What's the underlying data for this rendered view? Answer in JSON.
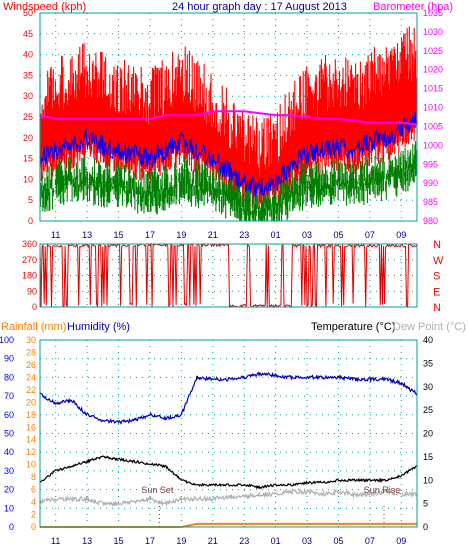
{
  "header": {
    "left_label": "Windspeed (kph)",
    "title": "24 hour graph day : 17 August 2013",
    "right_label": "Barometer (hpa)"
  },
  "colors": {
    "wind": "#ff0000",
    "gust": "#ff0000",
    "avg": "#0000ff",
    "green": "#008000",
    "baro": "#ff00ff",
    "rain": "#ff8000",
    "humidity": "#0000c0",
    "temperature": "#000000",
    "dewpoint": "#b0b0b0",
    "grid": "#00a0a0",
    "frame": "#00a0a0",
    "axis_left": "#ff0000",
    "axis_right": "#ff00ff",
    "axis_rain": "#0000ff",
    "axis_hum": "#ff8000",
    "axis_temp": "#000000"
  },
  "chart_data": [
    {
      "type": "line",
      "title": "24 hour graph day : 17 August 2013",
      "ylabel_left": "Windspeed (kph)",
      "ylabel_right": "Barometer (hpa)",
      "ylim_left": [
        0,
        50
      ],
      "ylim_right": [
        980,
        1035
      ],
      "yticks_left": [
        0,
        5,
        10,
        15,
        20,
        25,
        30,
        35,
        40,
        45,
        50
      ],
      "yticks_right": [
        980,
        985,
        990,
        995,
        1000,
        1005,
        1010,
        1015,
        1020,
        1025,
        1030,
        1035
      ],
      "x_ticks": [
        "11",
        "13",
        "15",
        "17",
        "19",
        "21",
        "23",
        "01",
        "03",
        "05",
        "07",
        "09"
      ],
      "x_hours": [
        0,
        1,
        2,
        3,
        4,
        5,
        6,
        7,
        8,
        9,
        10,
        11,
        12,
        13,
        14,
        15,
        16,
        17,
        18,
        19,
        20,
        21,
        22,
        23,
        24
      ],
      "series": [
        {
          "role": "gust",
          "values": [
            28,
            30,
            32,
            34,
            31,
            30,
            29,
            27,
            30,
            33,
            30,
            26,
            22,
            18,
            15,
            17,
            24,
            28,
            30,
            31,
            30,
            32,
            33,
            36,
            38
          ]
        },
        {
          "role": "avg",
          "values": [
            15,
            17,
            18,
            20,
            18,
            17,
            16,
            15,
            17,
            19,
            17,
            15,
            12,
            9,
            8,
            9,
            13,
            16,
            17,
            18,
            17,
            19,
            20,
            22,
            25
          ]
        },
        {
          "role": "min",
          "values": [
            7,
            9,
            10,
            10,
            9,
            9,
            8,
            7,
            8,
            10,
            9,
            8,
            6,
            4,
            3,
            4,
            7,
            9,
            9,
            10,
            9,
            10,
            11,
            12,
            14
          ]
        },
        {
          "role": "barometer",
          "values": [
            1008,
            1007,
            1007,
            1007,
            1007,
            1007,
            1007,
            1007,
            1008,
            1008,
            1008,
            1009,
            1009,
            1009,
            1008.5,
            1008,
            1008,
            1007.5,
            1007,
            1007,
            1006.5,
            1006,
            1006,
            1006,
            1005.5
          ]
        }
      ]
    },
    {
      "type": "line",
      "ylim": [
        0,
        360
      ],
      "yticks": [
        0,
        90,
        180,
        270,
        360
      ],
      "right_labels": [
        "N",
        "W",
        "S",
        "E",
        "N"
      ],
      "x_ticks": [
        "11",
        "13",
        "15",
        "17",
        "19",
        "21",
        "23",
        "01",
        "03",
        "05",
        "07",
        "09"
      ],
      "direction_segments": [
        {
          "from_hour": 0,
          "to_hour": 6,
          "value": 350
        },
        {
          "from_hour": 6,
          "to_hour": 12,
          "value": 355
        },
        {
          "from_hour": 12,
          "to_hour": 16,
          "value": 5
        },
        {
          "from_hour": 16,
          "to_hour": 24,
          "value": 350
        }
      ]
    },
    {
      "type": "line",
      "legend_rain": "Rainfall (mm)",
      "legend_humidity": "Humidity (%)",
      "legend_temperature": "Temperature (°C)",
      "legend_dewpoint": "Dew Point (°C)",
      "yticks_humidity": [
        0,
        10,
        20,
        30,
        40,
        50,
        60,
        70,
        80,
        90,
        100
      ],
      "yticks_rain": [
        0,
        2,
        4,
        6,
        8,
        10,
        12,
        14,
        16,
        18,
        20,
        22,
        24,
        26,
        28,
        30
      ],
      "yticks_temp": [
        0,
        5,
        10,
        15,
        20,
        25,
        30,
        35,
        40
      ],
      "ylim_humidity": [
        0,
        100
      ],
      "ylim_temp": [
        0,
        40
      ],
      "x_ticks": [
        "11",
        "13",
        "15",
        "17",
        "19",
        "21",
        "23",
        "01",
        "03",
        "05",
        "07",
        "09"
      ],
      "x_hours": [
        0,
        1,
        2,
        3,
        4,
        5,
        6,
        7,
        8,
        9,
        10,
        11,
        12,
        13,
        14,
        15,
        16,
        17,
        18,
        19,
        20,
        21,
        22,
        23,
        24
      ],
      "series": [
        {
          "role": "humidity",
          "values": [
            71,
            66,
            68,
            60,
            57,
            56,
            57,
            60,
            58,
            60,
            80,
            79,
            79,
            80,
            82,
            81,
            80,
            80,
            80,
            80,
            79,
            79,
            79,
            77,
            71
          ]
        },
        {
          "role": "temperature",
          "values": [
            9.5,
            12,
            13,
            14,
            15,
            14.5,
            14,
            13.5,
            13,
            10,
            9,
            9,
            9,
            9,
            8.5,
            9,
            9,
            9.5,
            9.5,
            10,
            10,
            10,
            10,
            11,
            13
          ]
        },
        {
          "role": "dewpoint",
          "values": [
            5.5,
            6,
            6,
            6,
            5,
            5,
            5.5,
            6,
            5,
            6,
            6,
            6,
            6.5,
            6.5,
            7,
            7,
            7.5,
            7.5,
            7,
            7.5,
            7,
            7,
            7.5,
            7,
            7
          ]
        },
        {
          "role": "rain",
          "values": [
            0,
            0,
            0,
            0,
            0,
            0,
            0,
            0,
            0,
            0,
            0.5,
            0.5,
            0.5,
            0.5,
            0.5,
            0.5,
            0.5,
            0.5,
            0.5,
            0.5,
            0.5,
            0.5,
            0.5,
            0.5,
            0.5
          ]
        }
      ],
      "annotations": [
        {
          "text": "Sun Set",
          "hour": 7.6
        },
        {
          "text": "Sun Rise",
          "hour": 21.9
        }
      ]
    }
  ]
}
